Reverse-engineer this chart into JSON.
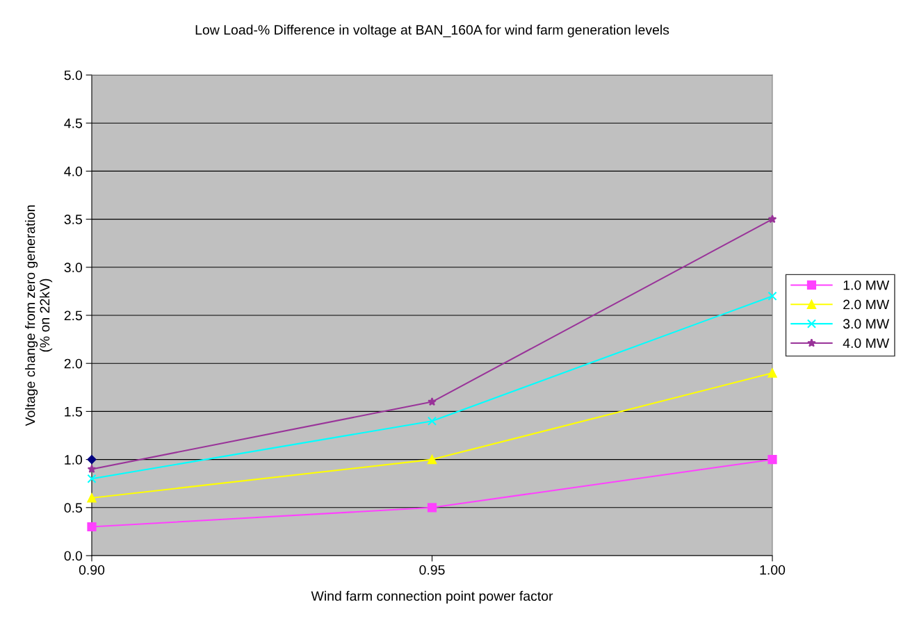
{
  "chart_data": {
    "type": "line",
    "title": "Low Load-% Difference in voltage at BAN_160A for wind farm generation levels",
    "xlabel": "Wind farm connection point power factor",
    "ylabel": "Voltage change from zero generation\n(% on 22kV)",
    "categories": [
      "0.90",
      "0.95",
      "1.00"
    ],
    "series": [
      {
        "name": "1.0 MW",
        "color": "#ff40ff",
        "marker": "square",
        "values": [
          0.3,
          0.5,
          1.0
        ]
      },
      {
        "name": "2.0 MW",
        "color": "#ffff00",
        "marker": "triangle",
        "values": [
          0.6,
          1.0,
          1.9
        ]
      },
      {
        "name": "3.0 MW",
        "color": "#00ffff",
        "marker": "cross",
        "values": [
          0.8,
          1.4,
          2.7
        ]
      },
      {
        "name": "4.0 MW",
        "color": "#993399",
        "marker": "star",
        "values": [
          0.9,
          1.6,
          3.5
        ]
      },
      {
        "type": "scatter",
        "color": "#000080",
        "marker": "diamond",
        "values": [
          1.0,
          null,
          null
        ]
      }
    ],
    "ylim": [
      0,
      5
    ],
    "yticks": [
      {
        "value": 0,
        "label": "0.0"
      },
      {
        "value": 0.5,
        "label": "0.5"
      },
      {
        "value": 1,
        "label": "1.0"
      },
      {
        "value": 1.5,
        "label": "1.5"
      },
      {
        "value": 2,
        "label": "2.0"
      },
      {
        "value": 2.5,
        "label": "2.5"
      },
      {
        "value": 3,
        "label": "3.0"
      },
      {
        "value": 3.5,
        "label": "3.5"
      },
      {
        "value": 4,
        "label": "4.0"
      },
      {
        "value": 4.5,
        "label": "4.5"
      },
      {
        "value": 5,
        "label": "5.0"
      }
    ],
    "grid": "y",
    "legend": "right",
    "line_style": "solid"
  }
}
